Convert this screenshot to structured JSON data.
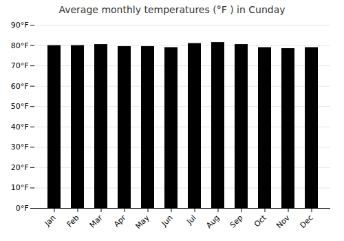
{
  "chart_data": {
    "type": "bar",
    "title": "Average monthly temperatures (°F ) in Cunday",
    "categories": [
      "Jan",
      "Feb",
      "Mar",
      "Apr",
      "May",
      "Jun",
      "Jul",
      "Aug",
      "Sep",
      "Oct",
      "Nov",
      "Dec"
    ],
    "values": [
      80.0,
      80.0,
      80.5,
      79.5,
      79.5,
      79.0,
      81.0,
      81.5,
      80.5,
      79.0,
      78.5,
      79.0
    ],
    "ylim": [
      0,
      90
    ],
    "yticks": [
      {
        "value": 0,
        "label": "0°F"
      },
      {
        "value": 10,
        "label": "10°F"
      },
      {
        "value": 20,
        "label": "20°F"
      },
      {
        "value": 30,
        "label": "30°F"
      },
      {
        "value": 40,
        "label": "40°F"
      },
      {
        "value": 50,
        "label": "50°F"
      },
      {
        "value": 60,
        "label": "60°F"
      },
      {
        "value": 70,
        "label": "70°F"
      },
      {
        "value": 80,
        "label": "80°F"
      },
      {
        "value": 90,
        "label": "90°F"
      }
    ],
    "grid": true
  }
}
